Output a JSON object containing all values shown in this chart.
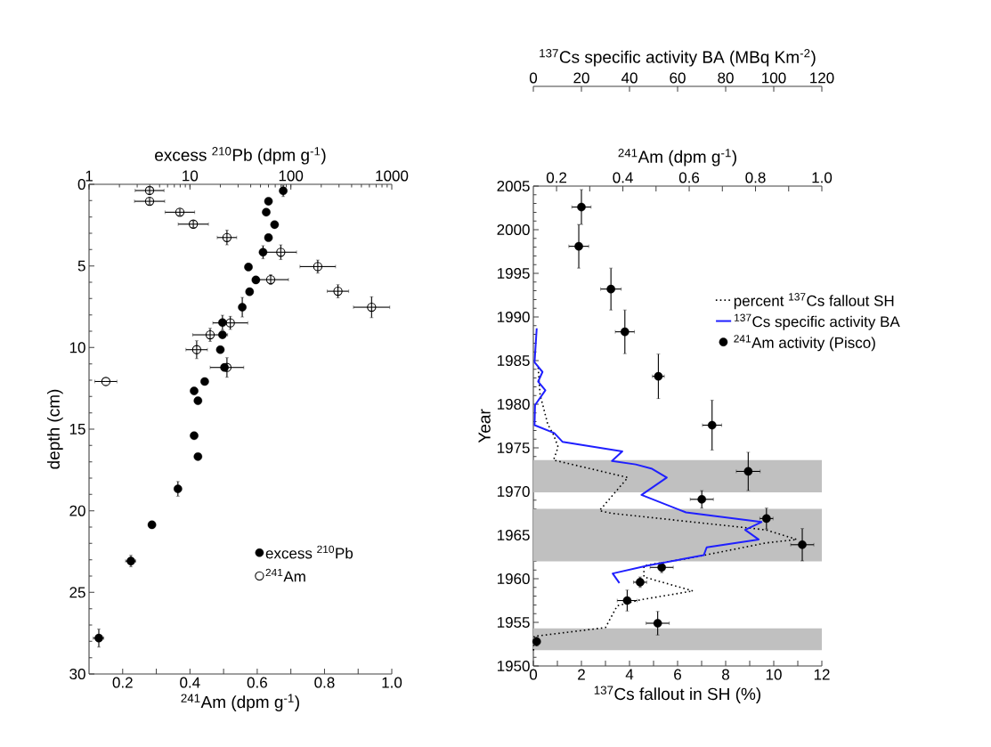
{
  "chart_data": [
    {
      "type": "scatter",
      "ylabel": "depth (cm)",
      "xlabel": "$^{241}$Am (dpm g$^{-1}$)",
      "x2label": "excess $^{210}$Pb (dpm g$^{-1}$)",
      "xlim": [
        0.1,
        1.0
      ],
      "xticks": [
        0.2,
        {
          "value": 0.3,
          "label": null
        },
        0.4,
        {
          "value": 0.5,
          "label": null
        },
        0.6,
        {
          "value": 0.7,
          "label": null
        },
        0.8,
        {
          "value": 0.9,
          "label": null
        },
        {
          "value": 1,
          "label": "1.0"
        }
      ],
      "x2lim": [
        1,
        1000
      ],
      "x2ticks": [
        1,
        10,
        100,
        1000
      ],
      "log": "x2",
      "ylim": [
        30,
        0
      ],
      "yticks": [
        0,
        5,
        10,
        15,
        20,
        25,
        30
      ],
      "legend": "bottom right",
      "series": [
        {
          "name": "excess $^{210}$Pb",
          "axis": "x2",
          "color": "#000000",
          "marker": "circle",
          "x": [
            84,
            60,
            57,
            69,
            60,
            53,
            38,
            45,
            39,
            33,
            21,
            21,
            20,
            22,
            14,
            11,
            12,
            11,
            12,
            7.6,
            4.2,
            2.6,
            1.25
          ],
          "values": [
            0.4,
            1.04,
            1.71,
            2.47,
            3.27,
            4.16,
            5.07,
            5.86,
            6.58,
            7.53,
            8.47,
            9.22,
            10.13,
            11.22,
            12.08,
            12.66,
            13.26,
            15.4,
            16.68,
            18.66,
            20.86,
            23.08,
            27.8
          ],
          "errors": [
            0.35,
            null,
            null,
            null,
            null,
            0.4,
            null,
            null,
            null,
            0.6,
            0.45,
            null,
            null,
            null,
            null,
            null,
            null,
            null,
            null,
            0.45,
            null,
            0.35,
            0.55
          ],
          "xerrors": [
            null,
            null,
            null,
            null,
            null,
            null,
            null,
            null,
            null,
            null,
            null,
            null,
            null,
            null,
            null,
            null,
            null,
            null,
            null,
            null,
            null,
            0.3,
            0.15
          ]
        },
        {
          "name": "$^{241}$Am",
          "color": "#000000",
          "marker": "open circle",
          "x": [
            0.28,
            0.28,
            0.37,
            0.41,
            0.51,
            0.67,
            0.78,
            0.64,
            0.84,
            0.94,
            0.52,
            0.46,
            0.42,
            0.51,
            0.15
          ],
          "values": [
            0.38,
            1.04,
            1.71,
            2.44,
            3.26,
            4.16,
            5.04,
            5.84,
            6.55,
            7.53,
            8.49,
            9.22,
            10.13,
            11.22,
            12.08
          ],
          "xerrors": [
            0.043,
            0.045,
            0.044,
            0.045,
            0.029,
            0.047,
            0.053,
            0.053,
            0.032,
            0.054,
            0.052,
            0.052,
            0.032,
            0.05,
            0.033
          ],
          "errors": [
            0.2,
            0.2,
            0.2,
            0.2,
            0.45,
            0.45,
            0.4,
            0.3,
            0.4,
            0.64,
            0.4,
            0.4,
            0.55,
            0.6,
            null
          ]
        }
      ]
    },
    {
      "type": "line",
      "ylabel": "Year",
      "xlabel": "$^{137}$Cs fallout in SH (%)",
      "x2label": "$^{241}$Am (dpm g$^{-1}$)",
      "xlim": [
        0,
        12
      ],
      "xticks": [
        0,
        {
          "value": 1,
          "label": null
        },
        2,
        {
          "value": 3,
          "label": null
        },
        4,
        {
          "value": 5,
          "label": null
        },
        6,
        {
          "value": 7,
          "label": null
        },
        8,
        {
          "value": 9,
          "label": null
        },
        10,
        {
          "value": 11,
          "label": null
        },
        12
      ],
      "x2lim": [
        0.13,
        1.0
      ],
      "x2ticks": [
        0.2,
        {
          "value": 0.3,
          "label": null
        },
        0.4,
        {
          "value": 0.5,
          "label": null
        },
        0.6,
        {
          "value": 0.7,
          "label": null
        },
        0.8,
        {
          "value": 0.9,
          "label": null
        },
        {
          "value": 1,
          "label": "1.0"
        }
      ],
      "ylim": [
        1950,
        2005
      ],
      "yticks": [
        1950,
        1955,
        1960,
        1965,
        1970,
        1975,
        1980,
        1985,
        1990,
        1995,
        2000,
        2005
      ],
      "legend": "right",
      "bands": [
        {
          "axis": "y",
          "from": 1951.8,
          "to": 1954.3,
          "color": "#c0c0c0"
        },
        {
          "axis": "y",
          "from": 1962.0,
          "to": 1968.0,
          "color": "#c0c0c0"
        },
        {
          "axis": "y",
          "from": 1969.9,
          "to": 1973.6,
          "color": "#c0c0c0"
        }
      ],
      "series": [
        {
          "name": "percent $^{137}$Cs fallout SH",
          "type": "line",
          "line_style": "dotted",
          "color": "#000000",
          "x": [
            0.2,
            0.28,
            0.6,
            0.84,
            1.03,
            0.84,
            3.93,
            2.75,
            3.25,
            9.67,
            10.96,
            9.67,
            6.58,
            4.6,
            4.6,
            6.64,
            4.48,
            3.49,
            3.0,
            0.04,
            0.0
          ],
          "values": [
            1984.2,
            1981.1,
            1977.7,
            1976.5,
            1975.1,
            1973.6,
            1971.6,
            1967.8,
            1967.5,
            1965.6,
            1964.5,
            1964.1,
            1962.4,
            1961.5,
            1960.2,
            1958.6,
            1957.6,
            1956.9,
            1954.4,
            1953.4,
            1951.5
          ]
        },
        {
          "name": "$^{241}$Am activity (Pisco)",
          "type": "scatter",
          "axis": "x2",
          "marker": "circle",
          "color": "#000000",
          "x": [
            0.275,
            0.267,
            0.364,
            0.406,
            0.507,
            0.669,
            0.778,
            0.638,
            0.833,
            0.941,
            0.517,
            0.452,
            0.413,
            0.505,
            0.14
          ],
          "values": [
            2002.6,
            1998.1,
            1993.2,
            1988.3,
            1983.2,
            1977.6,
            1972.3,
            1969.1,
            1966.9,
            1963.9,
            1961.3,
            1959.6,
            1957.5,
            1954.9,
            1952.8
          ],
          "errors": [
            2.0,
            2.5,
            2.4,
            2.5,
            2.55,
            2.85,
            2.2,
            1.0,
            1.2,
            1.85,
            0.6,
            0.6,
            1.2,
            1.35,
            0.5
          ],
          "xerrors": [
            0.029,
            0.03,
            0.031,
            0.029,
            0.018,
            0.029,
            0.036,
            0.035,
            0.02,
            0.035,
            0.035,
            0.02,
            0.03,
            0.035,
            0.01
          ]
        }
      ]
    },
    {
      "type": "line",
      "xlabel": "$^{137}$Cs specific activity BA (MBq Km$^{-2}$)",
      "xlim": [
        0,
        120
      ],
      "xticks": [
        0,
        20,
        40,
        60,
        80,
        100,
        120
      ],
      "ylim": [
        1950,
        2005
      ],
      "tick_labels": "x",
      "legend": "right",
      "series": [
        {
          "name": "$^{137}$Cs specific activity BA",
          "type": "line",
          "line_style": "solid",
          "color": "#1f1fff",
          "x": [
            1.4,
            0.5,
            3.8,
            2.0,
            5.0,
            0.7,
            0.5,
            8.7,
            12.1,
            37.0,
            32.7,
            42.6,
            49.4,
            55.5,
            45.0,
            63.5,
            94.9,
            88.1,
            93.7,
            72.1,
            70.9,
            47.5,
            33.0,
            35.8
          ],
          "values": [
            1988.7,
            1984.8,
            1983.7,
            1982.6,
            1981.6,
            1979.9,
            1977.6,
            1976.7,
            1975.7,
            1974.6,
            1973.5,
            1973.1,
            1972.6,
            1971.6,
            1969.6,
            1967.6,
            1966.5,
            1965.6,
            1964.5,
            1963.6,
            1962.7,
            1961.5,
            1960.6,
            1959.5
          ]
        }
      ]
    }
  ]
}
